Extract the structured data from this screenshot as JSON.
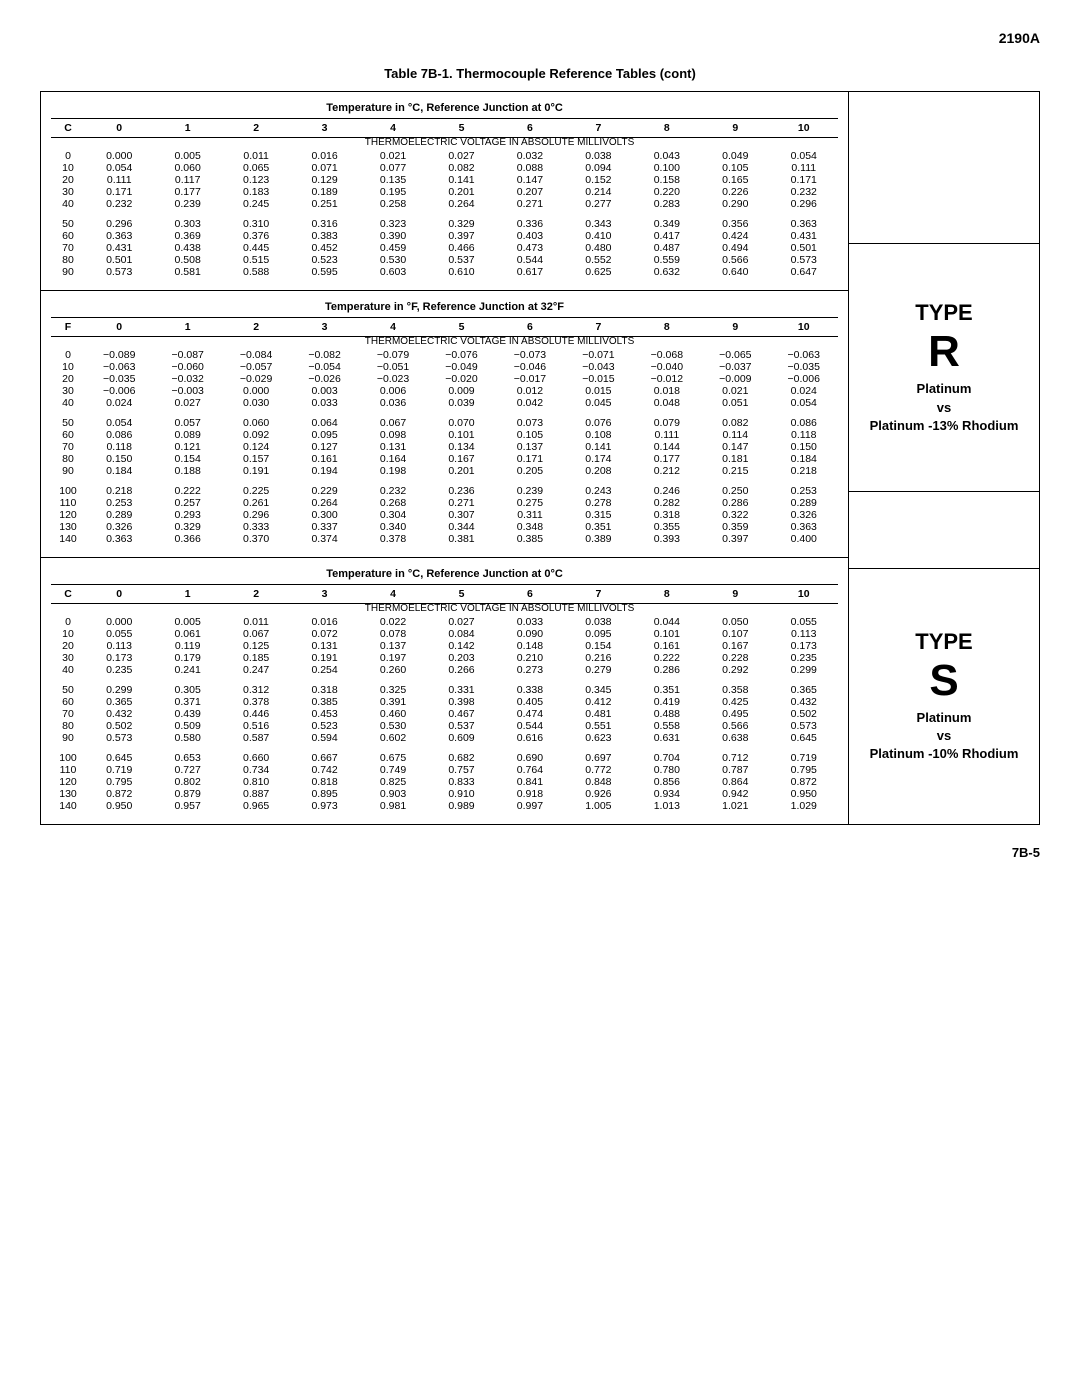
{
  "header_code": "2190A",
  "footer_code": "7B-5",
  "table_title": "Table 7B-1. Thermocouple Reference Tables (cont)",
  "subtitle": "THERMOELECTRIC VOLTAGE IN ABSOLUTE MILLIVOLTS",
  "col_headers": [
    "0",
    "1",
    "2",
    "3",
    "4",
    "5",
    "6",
    "7",
    "8",
    "9",
    "10"
  ],
  "sections": [
    {
      "title": "Temperature in °C, Reference Junction at 0°C",
      "unit": "C",
      "blocks": [
        [
          {
            "t": "0",
            "v": [
              "0.000",
              "0.005",
              "0.011",
              "0.016",
              "0.021",
              "0.027",
              "0.032",
              "0.038",
              "0.043",
              "0.049",
              "0.054"
            ]
          },
          {
            "t": "10",
            "v": [
              "0.054",
              "0.060",
              "0.065",
              "0.071",
              "0.077",
              "0.082",
              "0.088",
              "0.094",
              "0.100",
              "0.105",
              "0.111"
            ]
          },
          {
            "t": "20",
            "v": [
              "0.111",
              "0.117",
              "0.123",
              "0.129",
              "0.135",
              "0.141",
              "0.147",
              "0.152",
              "0.158",
              "0.165",
              "0.171"
            ]
          },
          {
            "t": "30",
            "v": [
              "0.171",
              "0.177",
              "0.183",
              "0.189",
              "0.195",
              "0.201",
              "0.207",
              "0.214",
              "0.220",
              "0.226",
              "0.232"
            ]
          },
          {
            "t": "40",
            "v": [
              "0.232",
              "0.239",
              "0.245",
              "0.251",
              "0.258",
              "0.264",
              "0.271",
              "0.277",
              "0.283",
              "0.290",
              "0.296"
            ]
          }
        ],
        [
          {
            "t": "50",
            "v": [
              "0.296",
              "0.303",
              "0.310",
              "0.316",
              "0.323",
              "0.329",
              "0.336",
              "0.343",
              "0.349",
              "0.356",
              "0.363"
            ]
          },
          {
            "t": "60",
            "v": [
              "0.363",
              "0.369",
              "0.376",
              "0.383",
              "0.390",
              "0.397",
              "0.403",
              "0.410",
              "0.417",
              "0.424",
              "0.431"
            ]
          },
          {
            "t": "70",
            "v": [
              "0.431",
              "0.438",
              "0.445",
              "0.452",
              "0.459",
              "0.466",
              "0.473",
              "0.480",
              "0.487",
              "0.494",
              "0.501"
            ]
          },
          {
            "t": "80",
            "v": [
              "0.501",
              "0.508",
              "0.515",
              "0.523",
              "0.530",
              "0.537",
              "0.544",
              "0.552",
              "0.559",
              "0.566",
              "0.573"
            ]
          },
          {
            "t": "90",
            "v": [
              "0.573",
              "0.581",
              "0.588",
              "0.595",
              "0.603",
              "0.610",
              "0.617",
              "0.625",
              "0.632",
              "0.640",
              "0.647"
            ]
          }
        ]
      ]
    },
    {
      "title": "Temperature in °F, Reference Junction at 32°F",
      "unit": "F",
      "blocks": [
        [
          {
            "t": "0",
            "v": [
              "−0.089",
              "−0.087",
              "−0.084",
              "−0.082",
              "−0.079",
              "−0.076",
              "−0.073",
              "−0.071",
              "−0.068",
              "−0.065",
              "−0.063"
            ]
          },
          {
            "t": "10",
            "v": [
              "−0.063",
              "−0.060",
              "−0.057",
              "−0.054",
              "−0.051",
              "−0.049",
              "−0.046",
              "−0.043",
              "−0.040",
              "−0.037",
              "−0.035"
            ]
          },
          {
            "t": "20",
            "v": [
              "−0.035",
              "−0.032",
              "−0.029",
              "−0.026",
              "−0.023",
              "−0.020",
              "−0.017",
              "−0.015",
              "−0.012",
              "−0.009",
              "−0.006"
            ]
          },
          {
            "t": "30",
            "v": [
              "−0.006",
              "−0.003",
              "0.000",
              "0.003",
              "0.006",
              "0.009",
              "0.012",
              "0.015",
              "0.018",
              "0.021",
              "0.024"
            ]
          },
          {
            "t": "40",
            "v": [
              "0.024",
              "0.027",
              "0.030",
              "0.033",
              "0.036",
              "0.039",
              "0.042",
              "0.045",
              "0.048",
              "0.051",
              "0.054"
            ]
          }
        ],
        [
          {
            "t": "50",
            "v": [
              "0.054",
              "0.057",
              "0.060",
              "0.064",
              "0.067",
              "0.070",
              "0.073",
              "0.076",
              "0.079",
              "0.082",
              "0.086"
            ]
          },
          {
            "t": "60",
            "v": [
              "0.086",
              "0.089",
              "0.092",
              "0.095",
              "0.098",
              "0.101",
              "0.105",
              "0.108",
              "0.111",
              "0.114",
              "0.118"
            ]
          },
          {
            "t": "70",
            "v": [
              "0.118",
              "0.121",
              "0.124",
              "0.127",
              "0.131",
              "0.134",
              "0.137",
              "0.141",
              "0.144",
              "0.147",
              "0.150"
            ]
          },
          {
            "t": "80",
            "v": [
              "0.150",
              "0.154",
              "0.157",
              "0.161",
              "0.164",
              "0.167",
              "0.171",
              "0.174",
              "0.177",
              "0.181",
              "0.184"
            ]
          },
          {
            "t": "90",
            "v": [
              "0.184",
              "0.188",
              "0.191",
              "0.194",
              "0.198",
              "0.201",
              "0.205",
              "0.208",
              "0.212",
              "0.215",
              "0.218"
            ]
          }
        ],
        [
          {
            "t": "100",
            "v": [
              "0.218",
              "0.222",
              "0.225",
              "0.229",
              "0.232",
              "0.236",
              "0.239",
              "0.243",
              "0.246",
              "0.250",
              "0.253"
            ]
          },
          {
            "t": "110",
            "v": [
              "0.253",
              "0.257",
              "0.261",
              "0.264",
              "0.268",
              "0.271",
              "0.275",
              "0.278",
              "0.282",
              "0.286",
              "0.289"
            ]
          },
          {
            "t": "120",
            "v": [
              "0.289",
              "0.293",
              "0.296",
              "0.300",
              "0.304",
              "0.307",
              "0.311",
              "0.315",
              "0.318",
              "0.322",
              "0.326"
            ]
          },
          {
            "t": "130",
            "v": [
              "0.326",
              "0.329",
              "0.333",
              "0.337",
              "0.340",
              "0.344",
              "0.348",
              "0.351",
              "0.355",
              "0.359",
              "0.363"
            ]
          },
          {
            "t": "140",
            "v": [
              "0.363",
              "0.366",
              "0.370",
              "0.374",
              "0.378",
              "0.381",
              "0.385",
              "0.389",
              "0.393",
              "0.397",
              "0.400"
            ]
          }
        ]
      ]
    },
    {
      "title": "Temperature in °C, Reference Junction at 0°C",
      "unit": "C",
      "blocks": [
        [
          {
            "t": "0",
            "v": [
              "0.000",
              "0.005",
              "0.011",
              "0.016",
              "0.022",
              "0.027",
              "0.033",
              "0.038",
              "0.044",
              "0.050",
              "0.055"
            ]
          },
          {
            "t": "10",
            "v": [
              "0.055",
              "0.061",
              "0.067",
              "0.072",
              "0.078",
              "0.084",
              "0.090",
              "0.095",
              "0.101",
              "0.107",
              "0.113"
            ]
          },
          {
            "t": "20",
            "v": [
              "0.113",
              "0.119",
              "0.125",
              "0.131",
              "0.137",
              "0.142",
              "0.148",
              "0.154",
              "0.161",
              "0.167",
              "0.173"
            ]
          },
          {
            "t": "30",
            "v": [
              "0.173",
              "0.179",
              "0.185",
              "0.191",
              "0.197",
              "0.203",
              "0.210",
              "0.216",
              "0.222",
              "0.228",
              "0.235"
            ]
          },
          {
            "t": "40",
            "v": [
              "0.235",
              "0.241",
              "0.247",
              "0.254",
              "0.260",
              "0.266",
              "0.273",
              "0.279",
              "0.286",
              "0.292",
              "0.299"
            ]
          }
        ],
        [
          {
            "t": "50",
            "v": [
              "0.299",
              "0.305",
              "0.312",
              "0.318",
              "0.325",
              "0.331",
              "0.338",
              "0.345",
              "0.351",
              "0.358",
              "0.365"
            ]
          },
          {
            "t": "60",
            "v": [
              "0.365",
              "0.371",
              "0.378",
              "0.385",
              "0.391",
              "0.398",
              "0.405",
              "0.412",
              "0.419",
              "0.425",
              "0.432"
            ]
          },
          {
            "t": "70",
            "v": [
              "0.432",
              "0.439",
              "0.446",
              "0.453",
              "0.460",
              "0.467",
              "0.474",
              "0.481",
              "0.488",
              "0.495",
              "0.502"
            ]
          },
          {
            "t": "80",
            "v": [
              "0.502",
              "0.509",
              "0.516",
              "0.523",
              "0.530",
              "0.537",
              "0.544",
              "0.551",
              "0.558",
              "0.566",
              "0.573"
            ]
          },
          {
            "t": "90",
            "v": [
              "0.573",
              "0.580",
              "0.587",
              "0.594",
              "0.602",
              "0.609",
              "0.616",
              "0.623",
              "0.631",
              "0.638",
              "0.645"
            ]
          }
        ],
        [
          {
            "t": "100",
            "v": [
              "0.645",
              "0.653",
              "0.660",
              "0.667",
              "0.675",
              "0.682",
              "0.690",
              "0.697",
              "0.704",
              "0.712",
              "0.719"
            ]
          },
          {
            "t": "110",
            "v": [
              "0.719",
              "0.727",
              "0.734",
              "0.742",
              "0.749",
              "0.757",
              "0.764",
              "0.772",
              "0.780",
              "0.787",
              "0.795"
            ]
          },
          {
            "t": "120",
            "v": [
              "0.795",
              "0.802",
              "0.810",
              "0.818",
              "0.825",
              "0.833",
              "0.841",
              "0.848",
              "0.856",
              "0.864",
              "0.872"
            ]
          },
          {
            "t": "130",
            "v": [
              "0.872",
              "0.879",
              "0.887",
              "0.895",
              "0.903",
              "0.910",
              "0.918",
              "0.926",
              "0.934",
              "0.942",
              "0.950"
            ]
          },
          {
            "t": "140",
            "v": [
              "0.950",
              "0.957",
              "0.965",
              "0.973",
              "0.981",
              "0.989",
              "0.997",
              "1.005",
              "1.013",
              "1.021",
              "1.029"
            ]
          }
        ]
      ]
    }
  ],
  "types": [
    {
      "label": "TYPE",
      "letter": "R",
      "desc1": "Platinum",
      "vs": "vs",
      "desc2": "Platinum -13% Rhodium"
    },
    {
      "label": "TYPE",
      "letter": "S",
      "desc1": "Platinum",
      "vs": "vs",
      "desc2": "Platinum -10% Rhodium"
    }
  ]
}
